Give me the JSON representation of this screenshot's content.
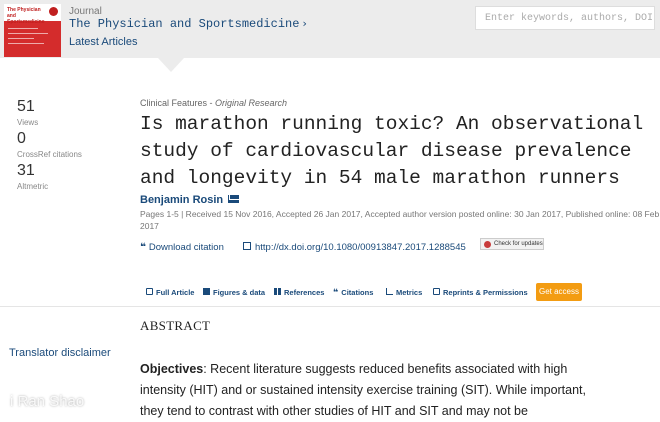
{
  "header": {
    "journal_label": "Journal",
    "journal_name": "The Physician and Sportsmedicine",
    "latest_articles": "Latest Articles",
    "search_placeholder": "Enter keywords, authors, DOI etc."
  },
  "metrics": [
    {
      "value": "51",
      "label": "Views"
    },
    {
      "value": "0",
      "label": "CrossRef citations"
    },
    {
      "value": "31",
      "label": "Altmetric"
    }
  ],
  "article": {
    "category": "Clinical Features - ",
    "type": "Original Research",
    "title": "Is marathon running toxic? An observational study of cardiovascular disease prevalence and longevity in 54 male marathon runners",
    "author": "Benjamin Rosin",
    "dates": "Pages 1-5 | Received 15 Nov 2016, Accepted 26 Jan 2017, Accepted author version posted online: 30 Jan 2017, Published online: 08 Feb 2017",
    "download_citation": "Download citation",
    "doi": "http://dx.doi.org/10.1080/00913847.2017.1288545",
    "check_updates": "Check for updates"
  },
  "tabs": {
    "full_article": "Full Article",
    "figures": "Figures & data",
    "references": "References",
    "citations": "Citations",
    "metrics": "Metrics",
    "reprints": "Reprints & Permissions",
    "get_access": "Get access"
  },
  "body": {
    "abstract_heading": "ABSTRACT",
    "translator_disclaimer": "Translator disclaimer",
    "objectives_label": "Objectives",
    "objectives_text": ": Recent literature suggests reduced benefits associated with high intensity (HIT) and or sustained intensity exercise training (SIT). While important, they tend to contrast with other studies of HIT and SIT and may not be"
  },
  "watermark": "i Ran Shao",
  "colors": {
    "link": "#1a4a7a",
    "accent": "#f39c12",
    "header_bg": "#ececec"
  }
}
